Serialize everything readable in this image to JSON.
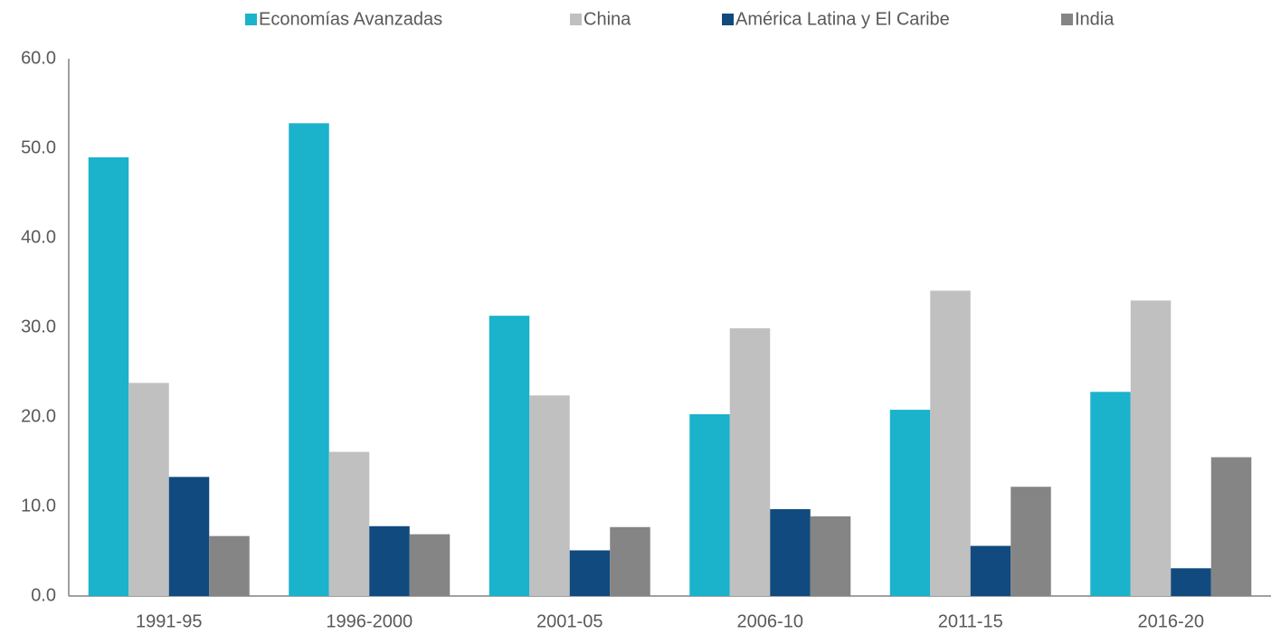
{
  "chart_data": {
    "type": "bar",
    "categories": [
      "1991-95",
      "1996-2000",
      "2001-05",
      "2006-10",
      "2011-15",
      "2016-20"
    ],
    "series": [
      {
        "name": "Economías Avanzadas",
        "color": "#1bb2cc",
        "values": [
          49.0,
          52.8,
          31.3,
          20.3,
          20.8,
          22.8
        ]
      },
      {
        "name": "China",
        "color": "#c0c0c0",
        "values": [
          23.8,
          16.1,
          22.4,
          29.9,
          34.1,
          33.0
        ]
      },
      {
        "name": "América Latina y El Caribe",
        "color": "#114a7e",
        "values": [
          13.3,
          7.8,
          5.1,
          9.7,
          5.6,
          3.1
        ]
      },
      {
        "name": "India",
        "color": "#858585",
        "values": [
          6.7,
          6.9,
          7.7,
          8.9,
          12.2,
          15.5
        ]
      }
    ],
    "ylim": [
      0,
      60
    ],
    "yticks": [
      {
        "value": 0,
        "label": "0.0"
      },
      {
        "value": 10,
        "label": "10.0"
      },
      {
        "value": 20,
        "label": "20.0"
      },
      {
        "value": 30,
        "label": "30.0"
      },
      {
        "value": 40,
        "label": "40.0"
      },
      {
        "value": 50,
        "label": "50.0"
      },
      {
        "value": 60,
        "label": "60.0"
      }
    ],
    "grid": false,
    "legend": "top"
  }
}
